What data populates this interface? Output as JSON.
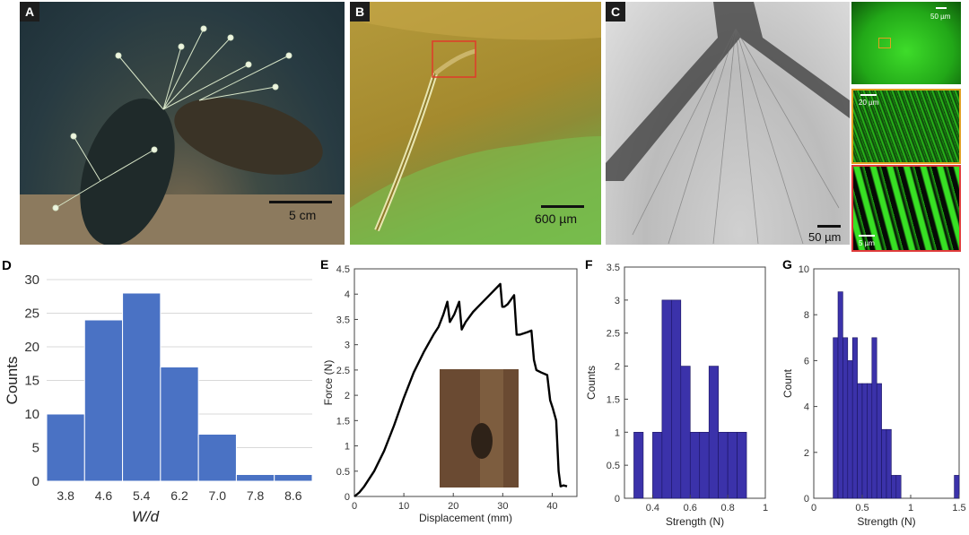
{
  "panels": {
    "a": {
      "label": "A",
      "scale": "5 cm"
    },
    "b": {
      "label": "B",
      "scale": "600 µm"
    },
    "c": {
      "label": "C",
      "scale_main": "50 µm",
      "scale_top": "50 µm",
      "scale_mid": "20 µm",
      "scale_bottom": "5 µm"
    }
  },
  "colors": {
    "hist_d": "#4a72c4",
    "hist_fg": "#3b32aa",
    "curve": "#000000"
  },
  "chart_data": [
    {
      "panel": "D",
      "type": "bar",
      "categories": [
        "3.8",
        "4.6",
        "5.4",
        "6.2",
        "7.0",
        "7.8",
        "8.6"
      ],
      "bins": [
        [
          3.4,
          4.2
        ],
        [
          4.2,
          5.0
        ],
        [
          5.0,
          5.8
        ],
        [
          5.8,
          6.6
        ],
        [
          6.6,
          7.4
        ],
        [
          7.4,
          8.2
        ],
        [
          8.2,
          9.0
        ]
      ],
      "values": [
        10,
        24,
        28,
        17,
        7,
        1,
        1
      ],
      "xlabel": "W/d",
      "ylabel": "Counts",
      "ylim": [
        0,
        30
      ],
      "yticks": [
        "0",
        "5",
        "10",
        "15",
        "20",
        "25",
        "30"
      ],
      "grid": true
    },
    {
      "panel": "E",
      "type": "line",
      "xlabel": "Displacement (mm)",
      "ylabel": "Force (N)",
      "xlim": [
        0,
        45
      ],
      "ylim": [
        0,
        4.5
      ],
      "xticks": [
        "0",
        "10",
        "20",
        "30",
        "40"
      ],
      "yticks": [
        "0",
        "0.5",
        "1",
        "1.5",
        "2",
        "2.5",
        "3",
        "3.5",
        "4",
        "4.5"
      ],
      "x": [
        0,
        1,
        2,
        4,
        6,
        8,
        10,
        12,
        14,
        16,
        17,
        18,
        18.8,
        19.3,
        20.2,
        21.2,
        21.7,
        22.5,
        24,
        26,
        28,
        29.5,
        29.9,
        30.3,
        31,
        32.3,
        32.8,
        33.5,
        35,
        35.8,
        36.3,
        36.8,
        37.8,
        39,
        39.6,
        40.1,
        40.8,
        41.3,
        41.7,
        42.3,
        43
      ],
      "y": [
        0,
        0.08,
        0.2,
        0.5,
        0.9,
        1.4,
        1.95,
        2.45,
        2.85,
        3.2,
        3.35,
        3.6,
        3.85,
        3.45,
        3.6,
        3.85,
        3.3,
        3.45,
        3.65,
        3.85,
        4.05,
        4.2,
        3.75,
        3.75,
        3.8,
        3.98,
        3.2,
        3.2,
        3.25,
        3.28,
        2.7,
        2.5,
        2.45,
        2.4,
        1.9,
        1.75,
        1.5,
        0.5,
        0.2,
        0.22,
        0.2
      ]
    },
    {
      "panel": "F",
      "type": "bar",
      "bins": [
        [
          0.3,
          0.35
        ],
        [
          0.35,
          0.4
        ],
        [
          0.4,
          0.45
        ],
        [
          0.45,
          0.5
        ],
        [
          0.5,
          0.55
        ],
        [
          0.55,
          0.6
        ],
        [
          0.6,
          0.65
        ],
        [
          0.65,
          0.7
        ],
        [
          0.7,
          0.75
        ],
        [
          0.75,
          0.8
        ],
        [
          0.8,
          0.85
        ],
        [
          0.85,
          0.9
        ]
      ],
      "values": [
        1,
        0,
        1,
        3,
        3,
        2,
        1,
        1,
        2,
        1,
        1,
        1
      ],
      "xlabel": "Strength (N)",
      "ylabel": "Counts",
      "xlim": [
        0.25,
        1.0
      ],
      "ylim": [
        0,
        3.5
      ],
      "xticks": [
        "0.4",
        "0.6",
        "0.8",
        "1"
      ],
      "yticks": [
        "0",
        "0.5",
        "1",
        "1.5",
        "2",
        "2.5",
        "3",
        "3.5"
      ]
    },
    {
      "panel": "G",
      "type": "bar",
      "bins": [
        [
          0.2,
          0.25
        ],
        [
          0.25,
          0.3
        ],
        [
          0.3,
          0.35
        ],
        [
          0.35,
          0.4
        ],
        [
          0.4,
          0.45
        ],
        [
          0.45,
          0.5
        ],
        [
          0.5,
          0.55
        ],
        [
          0.55,
          0.6
        ],
        [
          0.6,
          0.65
        ],
        [
          0.65,
          0.7
        ],
        [
          0.7,
          0.75
        ],
        [
          0.75,
          0.8
        ],
        [
          0.8,
          0.85
        ],
        [
          0.85,
          0.9
        ],
        [
          1.45,
          1.5
        ]
      ],
      "values": [
        7,
        9,
        7,
        6,
        7,
        5,
        5,
        5,
        7,
        5,
        3,
        3,
        1,
        1,
        1
      ],
      "xlabel": "Strength (N)",
      "ylabel": "Count",
      "xlim": [
        0,
        1.5
      ],
      "ylim": [
        0,
        10
      ],
      "xticks": [
        "0",
        "0.5",
        "1",
        "1.5"
      ],
      "yticks": [
        "0",
        "2",
        "4",
        "6",
        "8",
        "10"
      ]
    }
  ]
}
